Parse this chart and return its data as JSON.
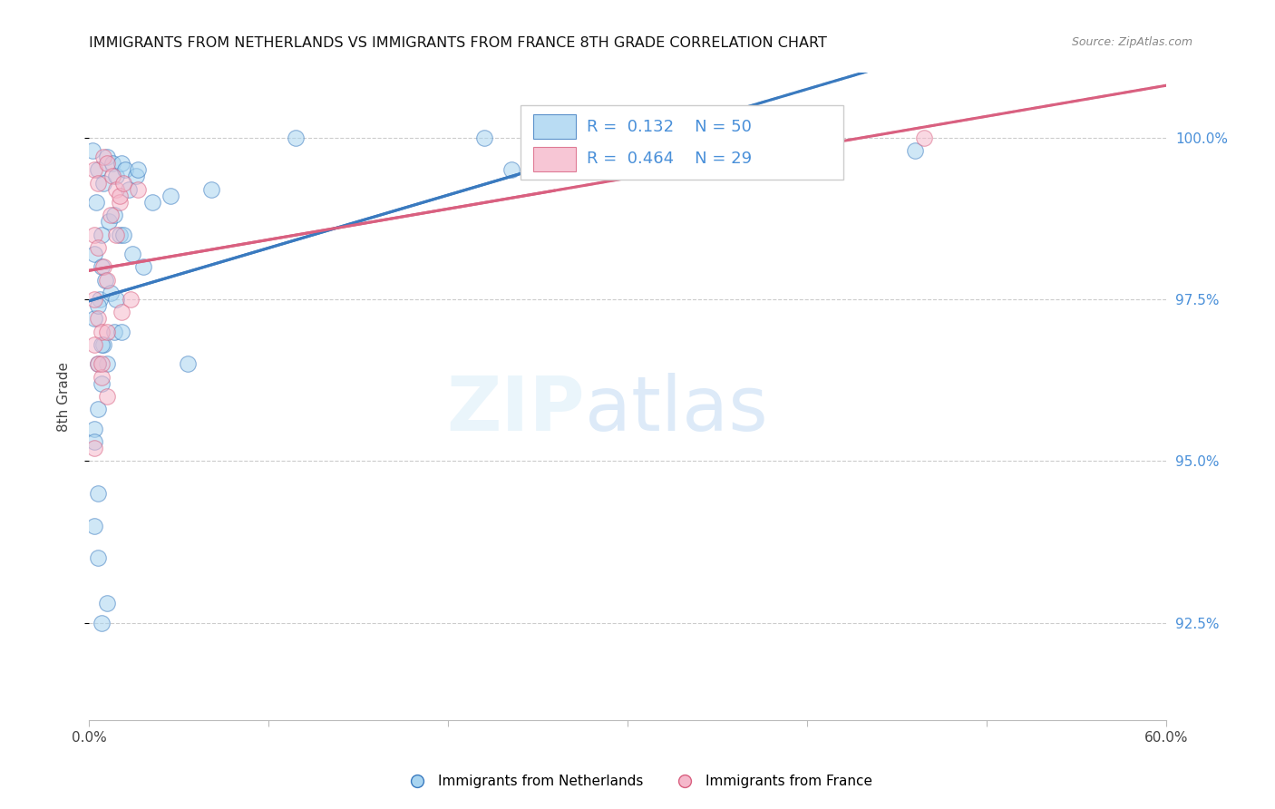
{
  "title": "IMMIGRANTS FROM NETHERLANDS VS IMMIGRANTS FROM FRANCE 8TH GRADE CORRELATION CHART",
  "source": "Source: ZipAtlas.com",
  "ylabel": "8th Grade",
  "r_netherlands": 0.132,
  "n_netherlands": 50,
  "r_france": 0.464,
  "n_france": 29,
  "color_netherlands": "#a8d4f0",
  "color_france": "#f5b8cb",
  "color_netherlands_line": "#3a7abf",
  "color_france_line": "#d96080",
  "color_right_axis": "#4a90d9",
  "nl_x": [
    0.2,
    0.5,
    0.8,
    1.0,
    1.3,
    1.5,
    1.8,
    2.0,
    0.4,
    0.7,
    1.1,
    1.4,
    1.7,
    0.3,
    0.6,
    0.9,
    1.2,
    0.3,
    0.5,
    0.8,
    1.4,
    1.9,
    2.2,
    2.6,
    3.5,
    2.4,
    3.0,
    4.5,
    5.5,
    6.8,
    1.0,
    1.5,
    1.8,
    2.7,
    0.5,
    0.7,
    0.5,
    1.0,
    0.7,
    0.3,
    0.5,
    0.7,
    22.0,
    0.7,
    0.5,
    0.3,
    23.5,
    11.5,
    0.3,
    46.0
  ],
  "nl_y": [
    99.8,
    99.5,
    99.3,
    99.7,
    99.6,
    99.4,
    99.6,
    99.5,
    99.0,
    98.5,
    98.7,
    98.8,
    98.5,
    98.2,
    97.5,
    97.8,
    97.6,
    97.2,
    97.4,
    96.8,
    97.0,
    98.5,
    99.2,
    99.4,
    99.0,
    98.2,
    98.0,
    99.1,
    96.5,
    99.2,
    96.5,
    97.5,
    97.0,
    99.5,
    93.5,
    92.5,
    96.5,
    92.8,
    96.2,
    95.5,
    94.5,
    96.8,
    100.0,
    98.0,
    95.8,
    95.3,
    99.5,
    100.0,
    94.0,
    99.8
  ],
  "fr_x": [
    0.3,
    0.5,
    0.8,
    1.0,
    1.3,
    1.5,
    1.7,
    0.3,
    0.5,
    0.8,
    1.0,
    0.3,
    0.5,
    0.7,
    0.3,
    0.5,
    0.7,
    1.0,
    1.2,
    1.5,
    1.7,
    1.9,
    2.3,
    2.7,
    0.7,
    1.0,
    0.3,
    46.5,
    1.8
  ],
  "fr_y": [
    99.5,
    99.3,
    99.7,
    99.6,
    99.4,
    99.2,
    99.0,
    98.5,
    98.3,
    98.0,
    97.8,
    97.5,
    97.2,
    97.0,
    96.8,
    96.5,
    96.3,
    96.0,
    98.8,
    98.5,
    99.1,
    99.3,
    97.5,
    99.2,
    96.5,
    97.0,
    95.2,
    100.0,
    97.3
  ],
  "xlim": [
    0,
    60
  ],
  "ylim": [
    91.0,
    101.0
  ],
  "yticks": [
    92.5,
    95.0,
    97.5,
    100.0
  ],
  "xticks": [
    0,
    10,
    20,
    30,
    40,
    50,
    60
  ]
}
